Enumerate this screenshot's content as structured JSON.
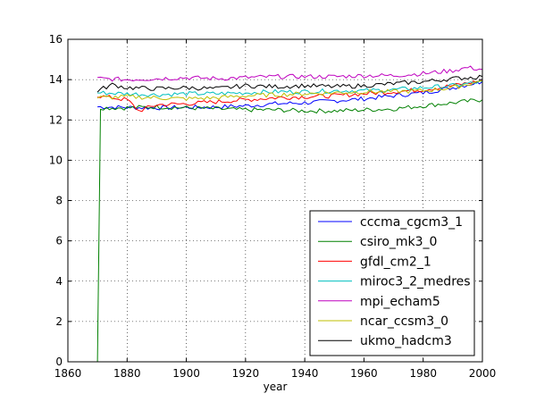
{
  "chart_data": {
    "type": "line",
    "title": "",
    "xlabel": "year",
    "ylabel": "",
    "xlim": [
      1860,
      2000
    ],
    "ylim": [
      0,
      16
    ],
    "x_ticks": [
      "1860",
      "1880",
      "1900",
      "1920",
      "1940",
      "1960",
      "1980",
      "2000"
    ],
    "y_ticks": [
      "0",
      "2",
      "4",
      "6",
      "8",
      "10",
      "12",
      "14",
      "16"
    ],
    "grid": true,
    "legend_position": "lower-right",
    "series": [
      {
        "name": "cccma_cgcm3_1",
        "color": "#0000ff",
        "x": [
          1870,
          1880,
          1890,
          1900,
          1910,
          1920,
          1930,
          1940,
          1950,
          1960,
          1970,
          1980,
          1990,
          2000
        ],
        "y": [
          12.65,
          12.62,
          12.6,
          12.62,
          12.64,
          12.7,
          12.8,
          12.85,
          12.95,
          13.05,
          13.2,
          13.35,
          13.6,
          13.9
        ]
      },
      {
        "name": "csiro_mk3_0",
        "color": "#008000",
        "x": [
          1870,
          1871,
          1880,
          1890,
          1900,
          1910,
          1920,
          1930,
          1940,
          1950,
          1960,
          1970,
          1980,
          1990,
          2000
        ],
        "y": [
          0,
          12.6,
          12.6,
          12.65,
          12.6,
          12.55,
          12.5,
          12.5,
          12.45,
          12.45,
          12.5,
          12.55,
          12.7,
          12.85,
          13.0
        ]
      },
      {
        "name": "gfdl_cm2_1",
        "color": "#ff0000",
        "x": [
          1870,
          1880,
          1884,
          1890,
          1900,
          1910,
          1920,
          1930,
          1940,
          1950,
          1960,
          1970,
          1980,
          1990,
          2000
        ],
        "y": [
          13.2,
          13.0,
          12.45,
          12.75,
          12.8,
          12.9,
          13.0,
          13.1,
          13.15,
          13.2,
          13.3,
          13.4,
          13.5,
          13.7,
          13.95
        ]
      },
      {
        "name": "miroc3_2_medres",
        "color": "#00bfbf",
        "x": [
          1870,
          1880,
          1890,
          1900,
          1910,
          1920,
          1930,
          1940,
          1950,
          1960,
          1970,
          1980,
          1990,
          2000
        ],
        "y": [
          13.35,
          13.3,
          13.25,
          13.3,
          13.3,
          13.35,
          13.4,
          13.4,
          13.45,
          13.45,
          13.5,
          13.6,
          13.7,
          13.9
        ]
      },
      {
        "name": "mpi_echam5",
        "color": "#bf00bf",
        "x": [
          1870,
          1880,
          1890,
          1900,
          1910,
          1920,
          1930,
          1940,
          1950,
          1960,
          1970,
          1980,
          1990,
          1995,
          2000
        ],
        "y": [
          14.05,
          14.0,
          14.05,
          14.1,
          14.05,
          14.1,
          14.15,
          14.15,
          14.15,
          14.2,
          14.2,
          14.3,
          14.45,
          14.6,
          14.5
        ]
      },
      {
        "name": "ncar_ccsm3_0",
        "color": "#bfbf00",
        "x": [
          1870,
          1880,
          1890,
          1900,
          1910,
          1920,
          1930,
          1940,
          1950,
          1960,
          1970,
          1980,
          1990,
          2000
        ],
        "y": [
          13.1,
          13.15,
          13.1,
          13.05,
          13.1,
          13.2,
          13.25,
          13.3,
          13.35,
          13.4,
          13.4,
          13.45,
          13.6,
          13.95
        ]
      },
      {
        "name": "ukmo_hadcm3",
        "color": "#000000",
        "x": [
          1870,
          1875,
          1880,
          1890,
          1900,
          1910,
          1920,
          1930,
          1940,
          1950,
          1960,
          1970,
          1980,
          1990,
          2000
        ],
        "y": [
          13.45,
          13.75,
          13.6,
          13.55,
          13.6,
          13.55,
          13.7,
          13.65,
          13.7,
          13.65,
          13.7,
          13.8,
          13.9,
          14.05,
          14.15
        ]
      }
    ]
  }
}
